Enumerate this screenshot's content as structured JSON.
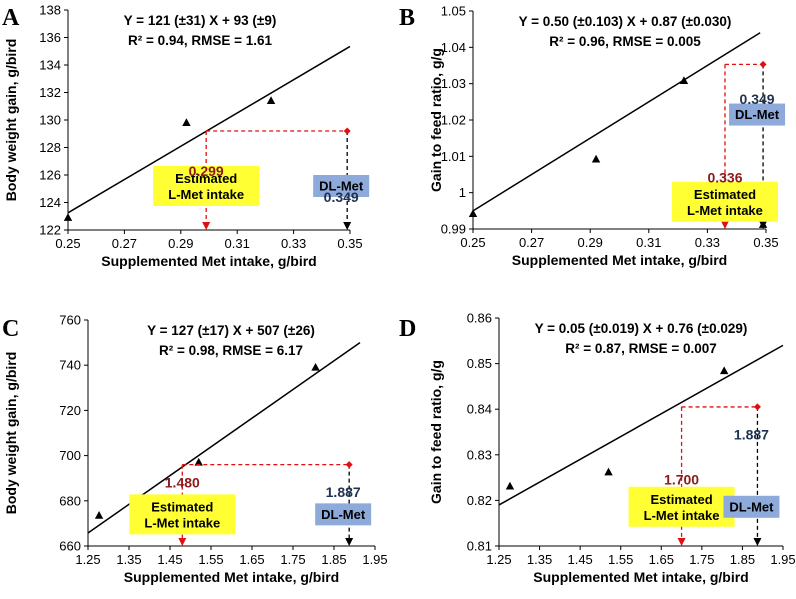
{
  "colors": {
    "estimated_box": "#ffff33",
    "dlmet_box": "#8eaadb",
    "red_marker": "#e01010",
    "red_value": "#8b1a1a",
    "blue_value": "#1f3350",
    "line": "#000000"
  },
  "chart_data": [
    {
      "panel": "A",
      "type": "scatter",
      "equation": "Y = 121 (±31) X + 93 (±9)",
      "stats": "R² = 0.94, RMSE = 1.61",
      "xlabel": "Supplemented Met intake, g/bird",
      "ylabel": "Body weight gain, g/bird",
      "xlim": [
        0.25,
        0.35
      ],
      "ylim": [
        122,
        138
      ],
      "xticks": [
        "0.25",
        "0.27",
        "0.29",
        "0.31",
        "0.33",
        "0.35"
      ],
      "yticks": [
        "122",
        "124",
        "126",
        "128",
        "130",
        "132",
        "134",
        "136",
        "138"
      ],
      "points": [
        [
          0.25,
          122.9
        ],
        [
          0.292,
          129.8
        ],
        [
          0.322,
          131.4
        ]
      ],
      "fit": {
        "slope": 121,
        "intercept": 93
      },
      "dl_met": {
        "x": 0.349,
        "y": 129.2,
        "value_label": "0.349",
        "box_label": "DL-Met"
      },
      "l_met": {
        "x": 0.299,
        "value_label": "0.299",
        "box_label": [
          "Estimated",
          "L-Met intake"
        ]
      },
      "layout": {
        "box_y": 125.2,
        "value_y": 126.3,
        "dl_value_y": 124.4
      }
    },
    {
      "panel": "B",
      "type": "scatter",
      "equation": "Y = 0.50 (±0.103) X + 0.87 (±0.030)",
      "stats": "R² = 0.96, RMSE = 0.005",
      "xlabel": "Supplemented Met intake, g/bird",
      "ylabel": "Gain to feed ratio, g/g",
      "xlim": [
        0.25,
        0.35
      ],
      "ylim": [
        0.99,
        1.05
      ],
      "xticks": [
        "0.25",
        "0.27",
        "0.29",
        "0.31",
        "0.33",
        "0.35"
      ],
      "yticks": [
        "0.99",
        "1",
        "1.01",
        "1.02",
        "1.03",
        "1.04",
        "1.05"
      ],
      "points": [
        [
          0.25,
          0.9942
        ],
        [
          0.292,
          1.0092
        ],
        [
          0.322,
          1.0308
        ],
        [
          0.349,
          0.9912
        ]
      ],
      "fit": {
        "slope": 0.5,
        "intercept": 0.87
      },
      "dl_met": {
        "x": 0.349,
        "y": 1.0353,
        "value_label": "0.349",
        "box_label": "DL-Met"
      },
      "l_met": {
        "x": 0.336,
        "value_label": "0.336",
        "box_label": [
          "Estimated",
          "L-Met intake"
        ]
      },
      "layout": {
        "box_y": 0.9975,
        "value_y": 1.0042,
        "dl_value_y": 1.0258
      }
    },
    {
      "panel": "C",
      "type": "scatter",
      "equation": "Y = 127 (±17) X + 507 (±26)",
      "stats": "R² = 0.98, RMSE = 6.17",
      "xlabel": "Supplemented Met intake, g/bird",
      "ylabel": "Body weight gain, g/bird",
      "xlim": [
        1.25,
        1.95
      ],
      "ylim": [
        660,
        760
      ],
      "xticks": [
        "1.25",
        "1.35",
        "1.45",
        "1.55",
        "1.65",
        "1.75",
        "1.85",
        "1.95"
      ],
      "yticks": [
        "660",
        "680",
        "700",
        "720",
        "740",
        "760"
      ],
      "points": [
        [
          1.277,
          673.5
        ],
        [
          1.52,
          697
        ],
        [
          1.805,
          739
        ]
      ],
      "fit": {
        "slope": 127,
        "intercept": 507
      },
      "dl_met": {
        "x": 1.887,
        "y": 696,
        "value_label": "1.887",
        "box_label": "DL-Met"
      },
      "l_met": {
        "x": 1.48,
        "value_label": "1.480",
        "box_label": [
          "Estimated",
          "L-Met intake"
        ]
      },
      "layout": {
        "box_y": 674,
        "value_y": 688,
        "dl_value_y": 684
      }
    },
    {
      "panel": "D",
      "type": "scatter",
      "equation": "Y = 0.05 (±0.019) X + 0.76 (±0.029)",
      "stats": "R² = 0.87, RMSE = 0.007",
      "xlabel": "Supplemented Met intake, g/bird",
      "ylabel": "Gain to feed ratio, g/g",
      "xlim": [
        1.25,
        1.95
      ],
      "ylim": [
        0.81,
        0.86
      ],
      "xticks": [
        "1.25",
        "1.35",
        "1.45",
        "1.55",
        "1.65",
        "1.75",
        "1.85",
        "1.95"
      ],
      "yticks": [
        "0.81",
        "0.82",
        "0.83",
        "0.84",
        "0.85",
        "0.86"
      ],
      "points": [
        [
          1.277,
          0.8231
        ],
        [
          1.52,
          0.8262
        ],
        [
          1.805,
          0.8484
        ]
      ],
      "fit": {
        "slope": 0.05,
        "intercept": 0.7565
      },
      "dl_met": {
        "x": 1.887,
        "y": 0.8405,
        "value_label": "1.887",
        "box_label": "DL-Met"
      },
      "l_met": {
        "x": 1.7,
        "value_label": "1.700",
        "box_label": [
          "Estimated",
          "L-Met intake"
        ]
      },
      "layout": {
        "box_y": 0.8186,
        "value_y": 0.8246,
        "dl_value_y": 0.8344
      }
    }
  ]
}
